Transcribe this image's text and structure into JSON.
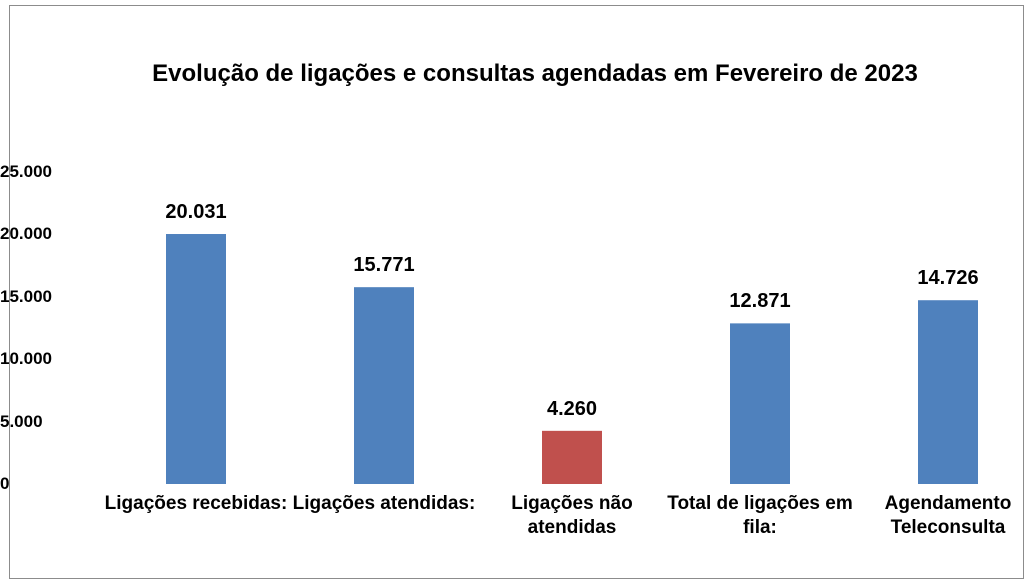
{
  "chart_data": {
    "type": "bar",
    "title": "Evolução de ligações e consultas agendadas em Fevereiro de 2023",
    "categories": [
      "Ligações recebidas:",
      "Ligações atendidas:",
      "Ligações não atendidas",
      "Total de ligações em fila:",
      "Agendamento Teleconsulta"
    ],
    "values": [
      20031,
      15771,
      4260,
      12871,
      14726
    ],
    "value_labels": [
      "20.031",
      "15.771",
      "4.260",
      "12.871",
      "14.726"
    ],
    "colors": [
      "#4f81bd",
      "#4f81bd",
      "#c0504d",
      "#4f81bd",
      "#4f81bd"
    ],
    "ylim": [
      0,
      25000
    ],
    "yticks": [
      0,
      {
        "value": 5000,
        "label": "5.000"
      },
      {
        "value": 10000,
        "label": "10.000"
      },
      {
        "value": 15000,
        "label": "15.000"
      },
      {
        "value": 20000,
        "label": "20.000"
      },
      {
        "value": 25000,
        "label": "25.000"
      }
    ],
    "grid": false
  }
}
